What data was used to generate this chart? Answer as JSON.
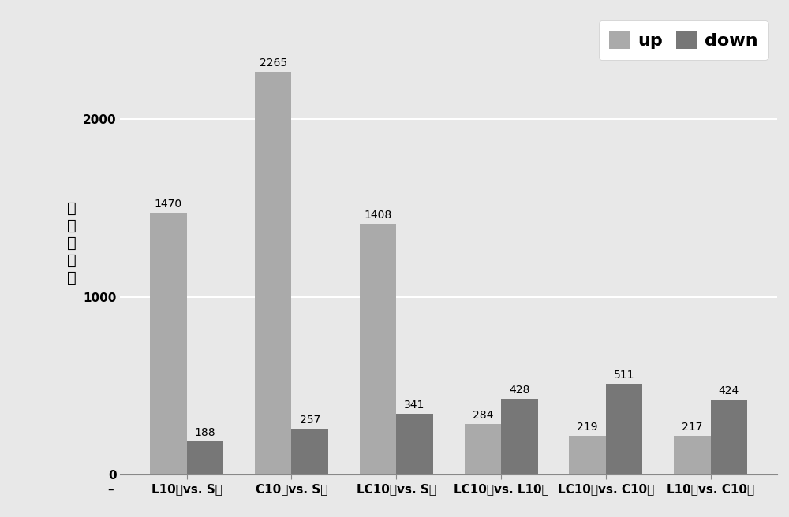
{
  "categories": [
    "L10组vs. S组",
    "C10组vs. S组",
    "LC10组vs. S组",
    "LC10组vs. L10组",
    "LC10组vs. C10组",
    "L10组vs. C10组"
  ],
  "up_values": [
    1470,
    2265,
    1408,
    284,
    219,
    217
  ],
  "down_values": [
    188,
    257,
    341,
    428,
    511,
    424
  ],
  "up_color": "#aaaaaa",
  "down_color": "#777777",
  "ylabel_chars": [
    "转",
    "录",
    "本",
    "数",
    "量"
  ],
  "ylim": [
    0,
    2600
  ],
  "yticks": [
    0,
    1000,
    2000
  ],
  "bar_width": 0.35,
  "background_color": "#e8e8e8",
  "plot_bg_color": "#e8e8e8",
  "grid_color": "#ffffff",
  "legend_labels": [
    "up",
    "down"
  ],
  "tick_fontsize": 11,
  "annotation_fontsize": 10,
  "legend_fontsize": 16
}
